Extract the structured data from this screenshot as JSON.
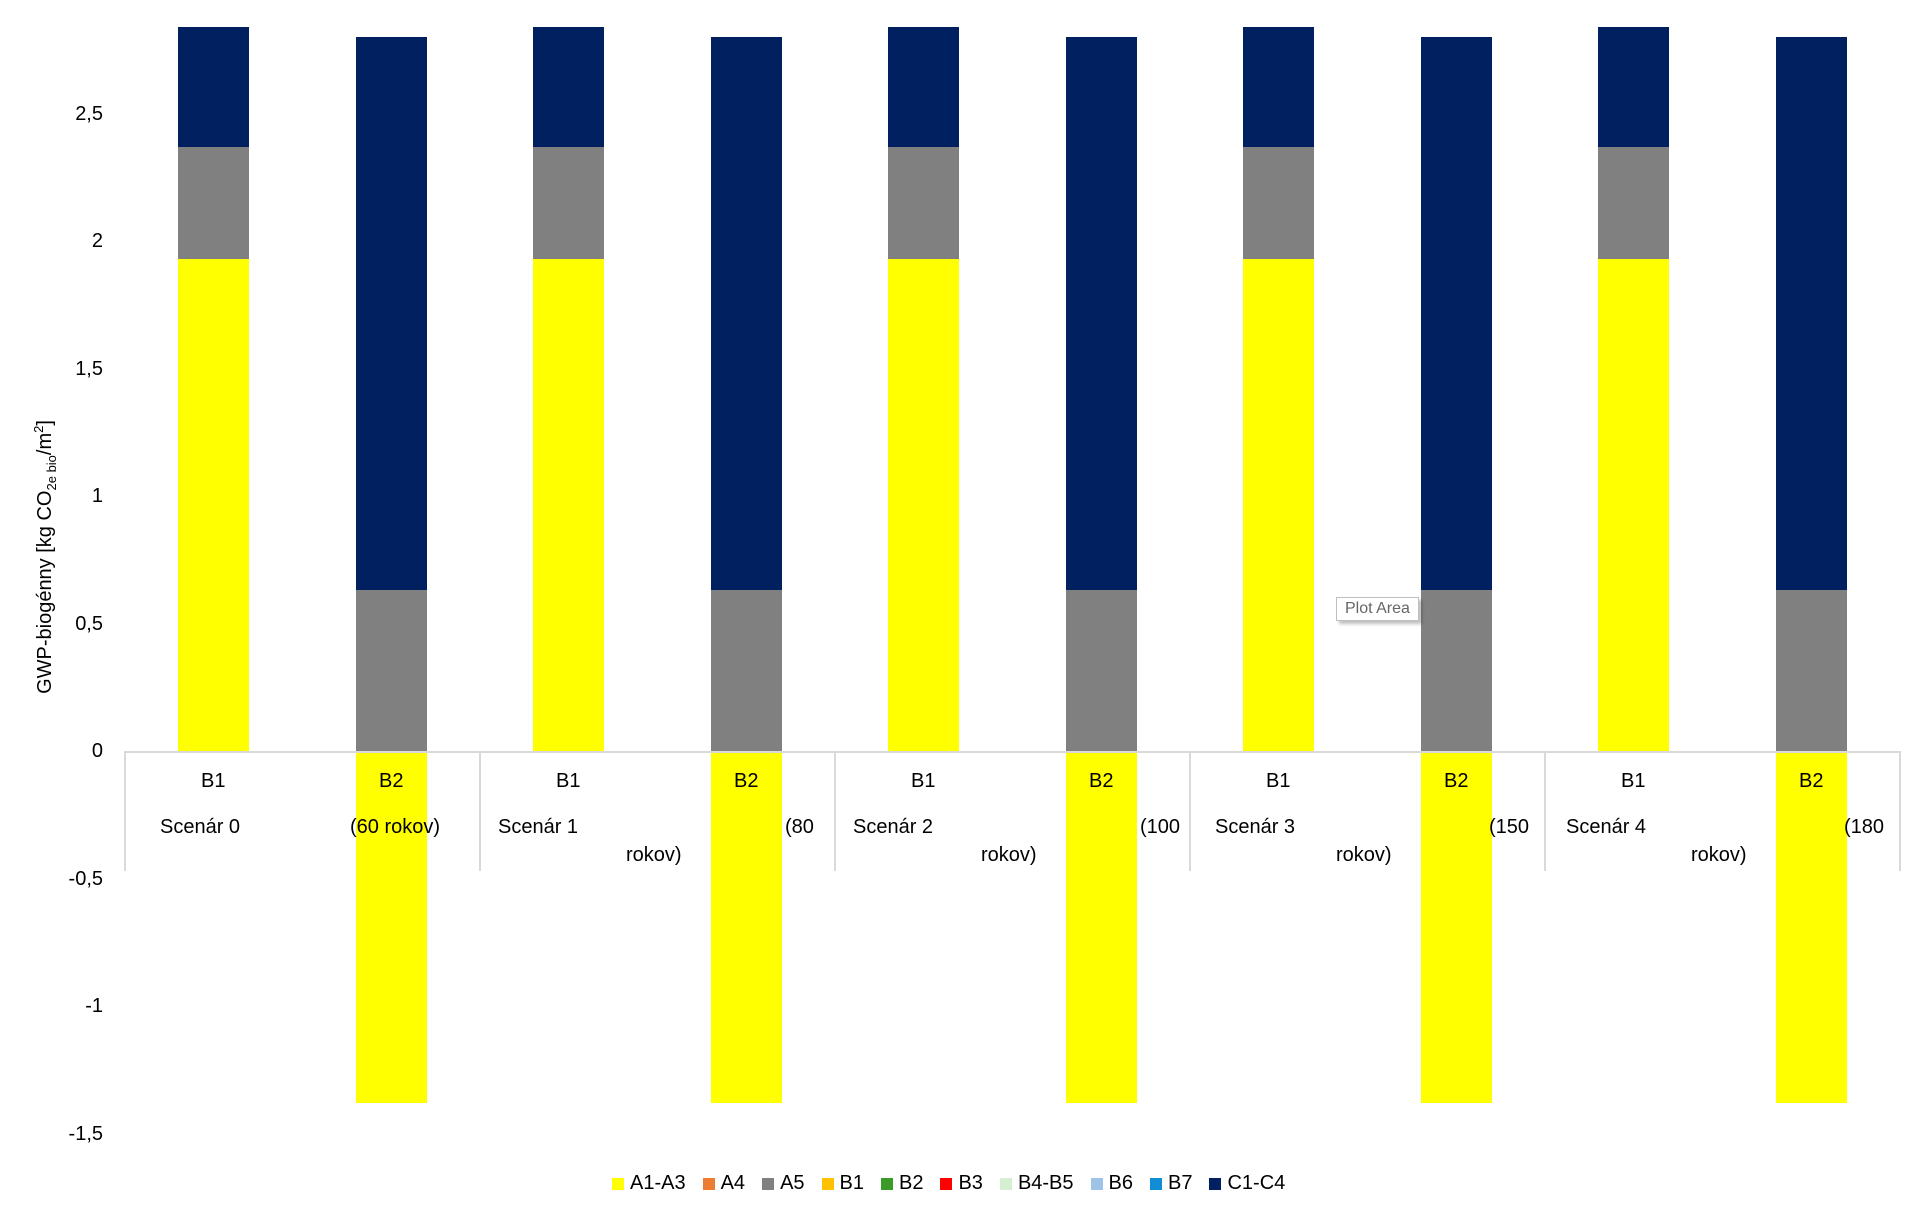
{
  "chart_data": {
    "type": "bar",
    "stacked": true,
    "title": "",
    "xlabel": "",
    "ylabel": "GWP-biogénny [kg CO2e bio/m2]",
    "ylabel_parts": {
      "pre": "GWP-biogénny [kg CO",
      "sub": "2e bio",
      "mid": "/m",
      "sup": "2",
      "post": "]"
    },
    "ylim": [
      -1.5,
      2.85
    ],
    "yticks": [
      "-1,5",
      "-1",
      "-0,5",
      "0",
      "0,5",
      "1",
      "1,5",
      "2",
      "2,5"
    ],
    "ytick_values": [
      -1.5,
      -1,
      -0.5,
      0,
      0.5,
      1,
      1.5,
      2,
      2.5
    ],
    "grid": false,
    "legend_position": "bottom",
    "groups": [
      {
        "label_a": "Scenár 0",
        "label_b": "(60 rokov)",
        "label_c": ""
      },
      {
        "label_a": "Scenár 1",
        "label_b": "(80",
        "label_c": "rokov)"
      },
      {
        "label_a": "Scenár 2",
        "label_b": "(100",
        "label_c": "rokov)"
      },
      {
        "label_a": "Scenár 3",
        "label_b": "(150",
        "label_c": "rokov)"
      },
      {
        "label_a": "Scenár 4",
        "label_b": "(180",
        "label_c": "rokov)"
      }
    ],
    "categories": [
      "B1 Scenár 0",
      "B2 (60 rokov)",
      "B1 Scenár 1",
      "B2 (80 rokov)",
      "B1 Scenár 2",
      "B2 (100 rokov)",
      "B1 Scenár 3",
      "B2 (150 rokov)",
      "B1 Scenár 4",
      "B2 (180 rokov)"
    ],
    "sub_categories": [
      "B1",
      "B2"
    ],
    "series": [
      {
        "name": "A1-A3",
        "color": "#FFFF00",
        "values": [
          1.93,
          -1.38,
          1.93,
          -1.38,
          1.93,
          -1.38,
          1.93,
          -1.38,
          1.93,
          -1.38
        ]
      },
      {
        "name": "A4",
        "color": "#ED7D31",
        "values": [
          0,
          0,
          0,
          0,
          0,
          0,
          0,
          0,
          0,
          0
        ]
      },
      {
        "name": "A5",
        "color": "#808080",
        "values": [
          0.44,
          0.63,
          0.44,
          0.63,
          0.44,
          0.63,
          0.44,
          0.63,
          0.44,
          0.63
        ]
      },
      {
        "name": "B1",
        "color": "#FFC000",
        "values": [
          0,
          0,
          0,
          0,
          0,
          0,
          0,
          0,
          0,
          0
        ]
      },
      {
        "name": "B2",
        "color": "#3A9A2A",
        "values": [
          0,
          0,
          0,
          0,
          0,
          0,
          0,
          0,
          0,
          0
        ]
      },
      {
        "name": "B3",
        "color": "#FF0000",
        "values": [
          0,
          0,
          0,
          0,
          0,
          0,
          0,
          0,
          0,
          0
        ]
      },
      {
        "name": "B4-B5",
        "color": "#D5F0D0",
        "values": [
          0,
          0,
          0,
          0,
          0,
          0,
          0,
          0,
          0,
          0
        ]
      },
      {
        "name": "B6",
        "color": "#9DC3E6",
        "values": [
          0,
          0,
          0,
          0,
          0,
          0,
          0,
          0,
          0,
          0
        ]
      },
      {
        "name": "B7",
        "color": "#0F8ED6",
        "values": [
          0,
          0,
          0,
          0,
          0,
          0,
          0,
          0,
          0,
          0
        ]
      },
      {
        "name": "C1-C4",
        "color": "#002060",
        "values": [
          0.47,
          2.17,
          0.47,
          2.17,
          0.47,
          2.17,
          0.47,
          2.17,
          0.47,
          2.17
        ]
      }
    ]
  },
  "tooltip": {
    "text": "Plot Area"
  }
}
